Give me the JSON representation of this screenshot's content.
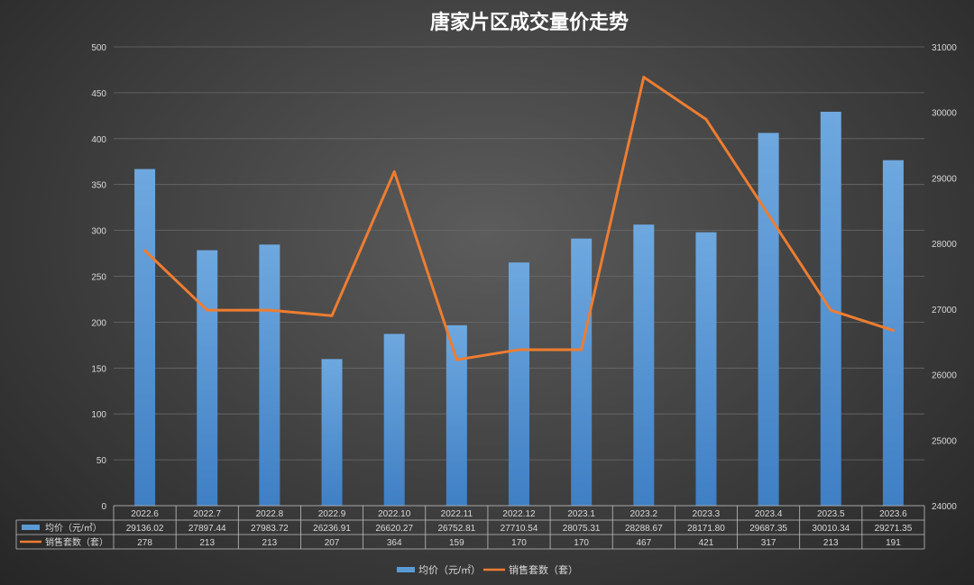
{
  "colors": {
    "bar": "#5b9bd5",
    "line": "#ed7d31",
    "text": "#d9d9d9",
    "grid": "#6a6a6a"
  },
  "chart_data": {
    "type": "bar",
    "title": "唐家片区成交量价走势",
    "categories": [
      "2022.6",
      "2022.7",
      "2022.8",
      "2022.9",
      "2022.10",
      "2022.11",
      "2022.12",
      "2023.1",
      "2023.2",
      "2023.3",
      "2023.4",
      "2023.5",
      "2023.6"
    ],
    "series": [
      {
        "name": "均价（元/㎡）",
        "type": "bar",
        "axis": "left",
        "values": [
          29136.02,
          27897.44,
          27983.72,
          26236.91,
          26620.27,
          26752.81,
          27710.54,
          28075.31,
          28288.67,
          28171.8,
          29687.35,
          30010.34,
          29271.35
        ],
        "display": [
          "29136.02",
          "27897.44",
          "27983.72",
          "26236.91",
          "26620.27",
          "26752.81",
          "27710.54",
          "28075.31",
          "28288.67",
          "28171.80",
          "29687.35",
          "30010.34",
          "29271.35"
        ]
      },
      {
        "name": "销售套数（套）",
        "type": "line",
        "axis": "right",
        "values": [
          278,
          213,
          213,
          207,
          364,
          159,
          170,
          170,
          467,
          421,
          317,
          213,
          191
        ],
        "display": [
          "278",
          "213",
          "213",
          "207",
          "364",
          "159",
          "170",
          "170",
          "467",
          "421",
          "317",
          "213",
          "191"
        ]
      }
    ],
    "left_axis": {
      "ylim": [
        0,
        500
      ],
      "ticks": [
        "0",
        "50",
        "100",
        "150",
        "200",
        "250",
        "300",
        "350",
        "400",
        "450",
        "500"
      ]
    },
    "right_axis": {
      "ylim": [
        24000,
        31000
      ],
      "ticks": [
        "24000",
        "25000",
        "26000",
        "27000",
        "28000",
        "29000",
        "30000",
        "31000"
      ]
    },
    "grid": true,
    "legend": "bottom"
  }
}
